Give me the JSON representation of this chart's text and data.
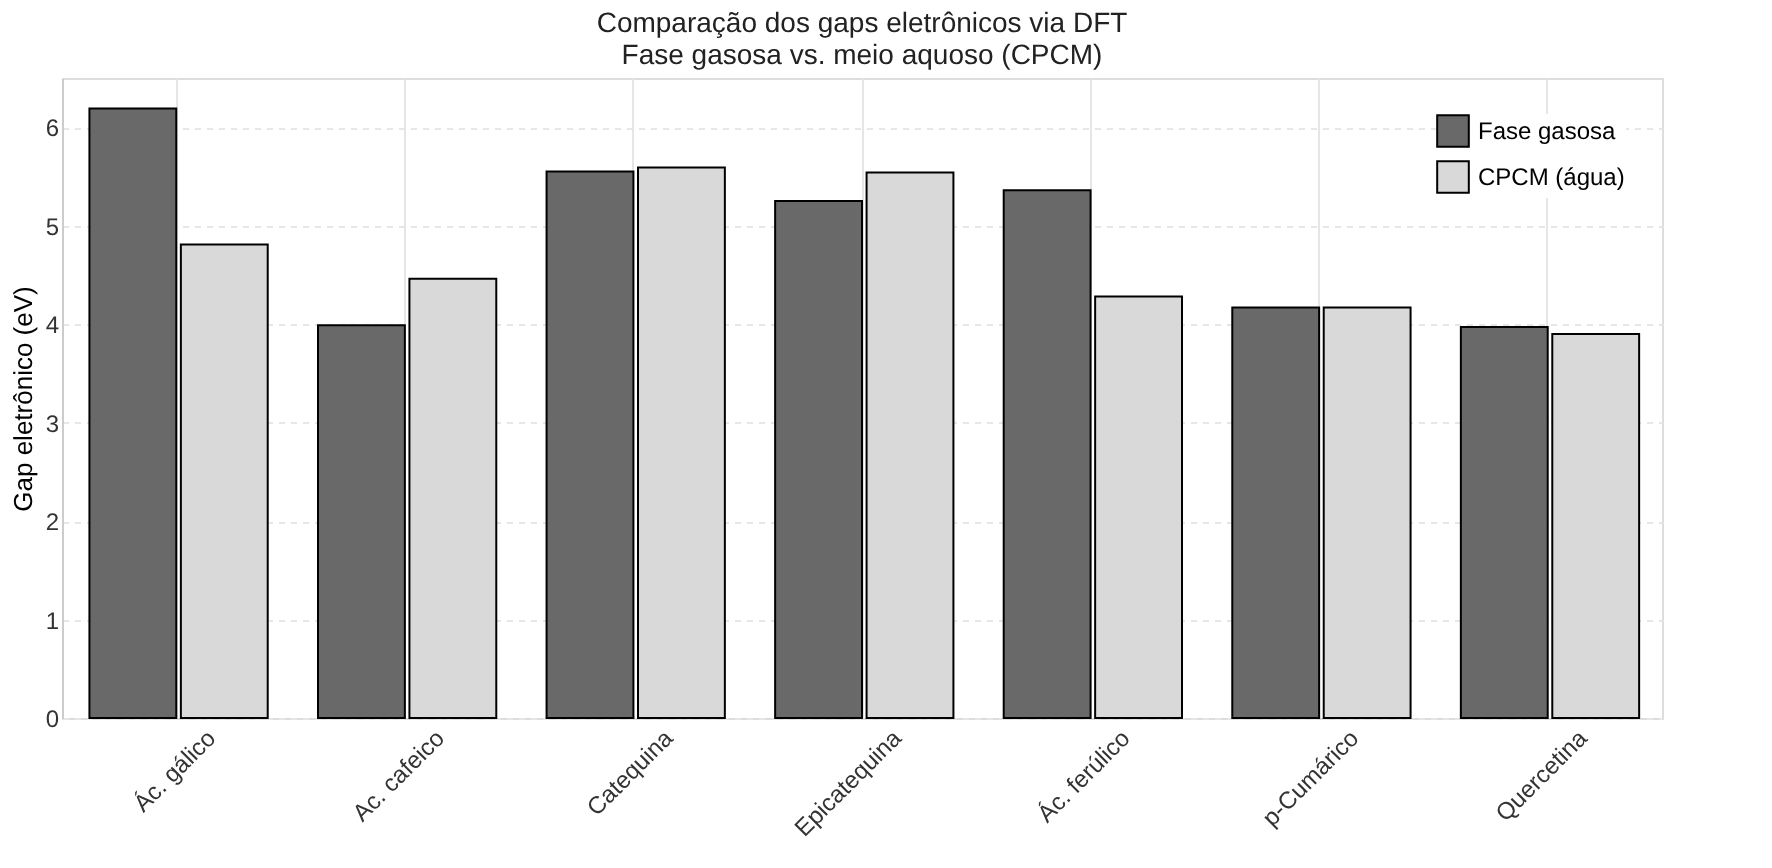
{
  "chart_data": {
    "type": "bar",
    "title": "Comparação dos gaps eletrônicos via DFT",
    "subtitle": "Fase gasosa vs. meio aquoso (CPCM)",
    "ylabel": "Gap eletrônico (eV)",
    "categories": [
      "Ác. gálico",
      "Ac. cafeico",
      "Catequina",
      "Epicatequina",
      "Ác. ferúlico",
      "p-Cumárico",
      "Quercetina"
    ],
    "series": [
      {
        "name": "Fase gasosa",
        "color": "#696969",
        "values": [
          6.19,
          3.99,
          5.55,
          5.25,
          5.36,
          4.17,
          3.97
        ]
      },
      {
        "name": "CPCM (água)",
        "color": "#d9d9d9",
        "values": [
          4.81,
          4.46,
          5.59,
          5.54,
          4.28,
          4.17,
          3.9
        ]
      }
    ],
    "ylim": [
      0,
      6.5
    ],
    "yticks": [
      0,
      1,
      2,
      3,
      4,
      5,
      6
    ],
    "grid": true,
    "legend": "top right"
  }
}
